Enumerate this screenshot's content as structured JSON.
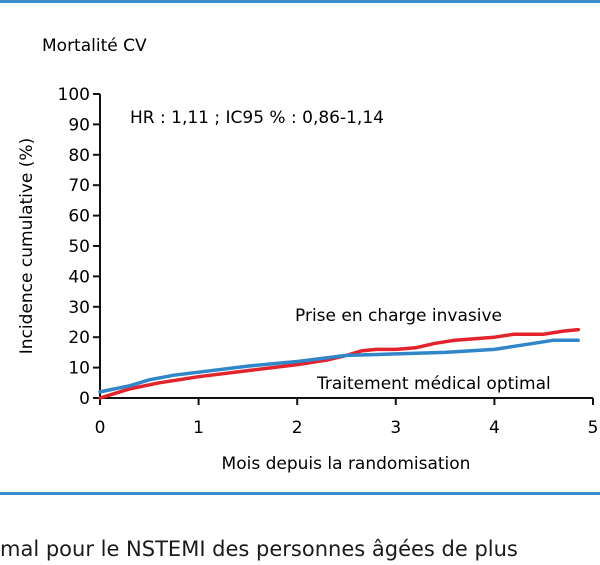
{
  "colors": {
    "rule": "#3b8fce",
    "axis": "#111111",
    "invasive": "#e3232b",
    "medical": "#2f86c8"
  },
  "chart_data": {
    "type": "line",
    "title": "Mortalité CV",
    "annotation": "HR : 1,11 ; IC95 % : 0,86-1,14",
    "xlabel": "Mois depuis la randomisation",
    "ylabel": "Incidence cumulative (%)",
    "xlim": [
      0,
      5
    ],
    "ylim": [
      0,
      100
    ],
    "xticks": [
      "0",
      "1",
      "2",
      "3",
      "4",
      "5"
    ],
    "yticks": [
      "0",
      "10",
      "20",
      "30",
      "40",
      "50",
      "60",
      "70",
      "80",
      "90",
      "100"
    ],
    "grid": false,
    "series": [
      {
        "name": "Prise en charge invasive",
        "color": "#e3232b",
        "x": [
          0,
          0.3,
          0.6,
          1.0,
          1.5,
          2.0,
          2.3,
          2.5,
          2.65,
          2.8,
          3.0,
          3.2,
          3.4,
          3.6,
          3.8,
          4.0,
          4.1,
          4.2,
          4.5,
          4.7,
          4.85
        ],
        "y": [
          0,
          3,
          5,
          7,
          9,
          11,
          12.5,
          14,
          15.5,
          16,
          16,
          16.5,
          18,
          19,
          19.5,
          20,
          20.5,
          21,
          21,
          22,
          22.5
        ]
      },
      {
        "name": "Traitement médical optimal",
        "color": "#2f86c8",
        "x": [
          0,
          0.3,
          0.5,
          0.75,
          1.0,
          1.5,
          2.0,
          2.5,
          3.0,
          3.5,
          4.0,
          4.2,
          4.4,
          4.6,
          4.85
        ],
        "y": [
          2,
          4,
          6,
          7.5,
          8.5,
          10.5,
          12,
          14,
          14.5,
          15,
          16,
          17,
          18,
          19,
          19
        ]
      }
    ]
  },
  "caption": "mal pour le NSTEMI des personnes âgées de plus"
}
